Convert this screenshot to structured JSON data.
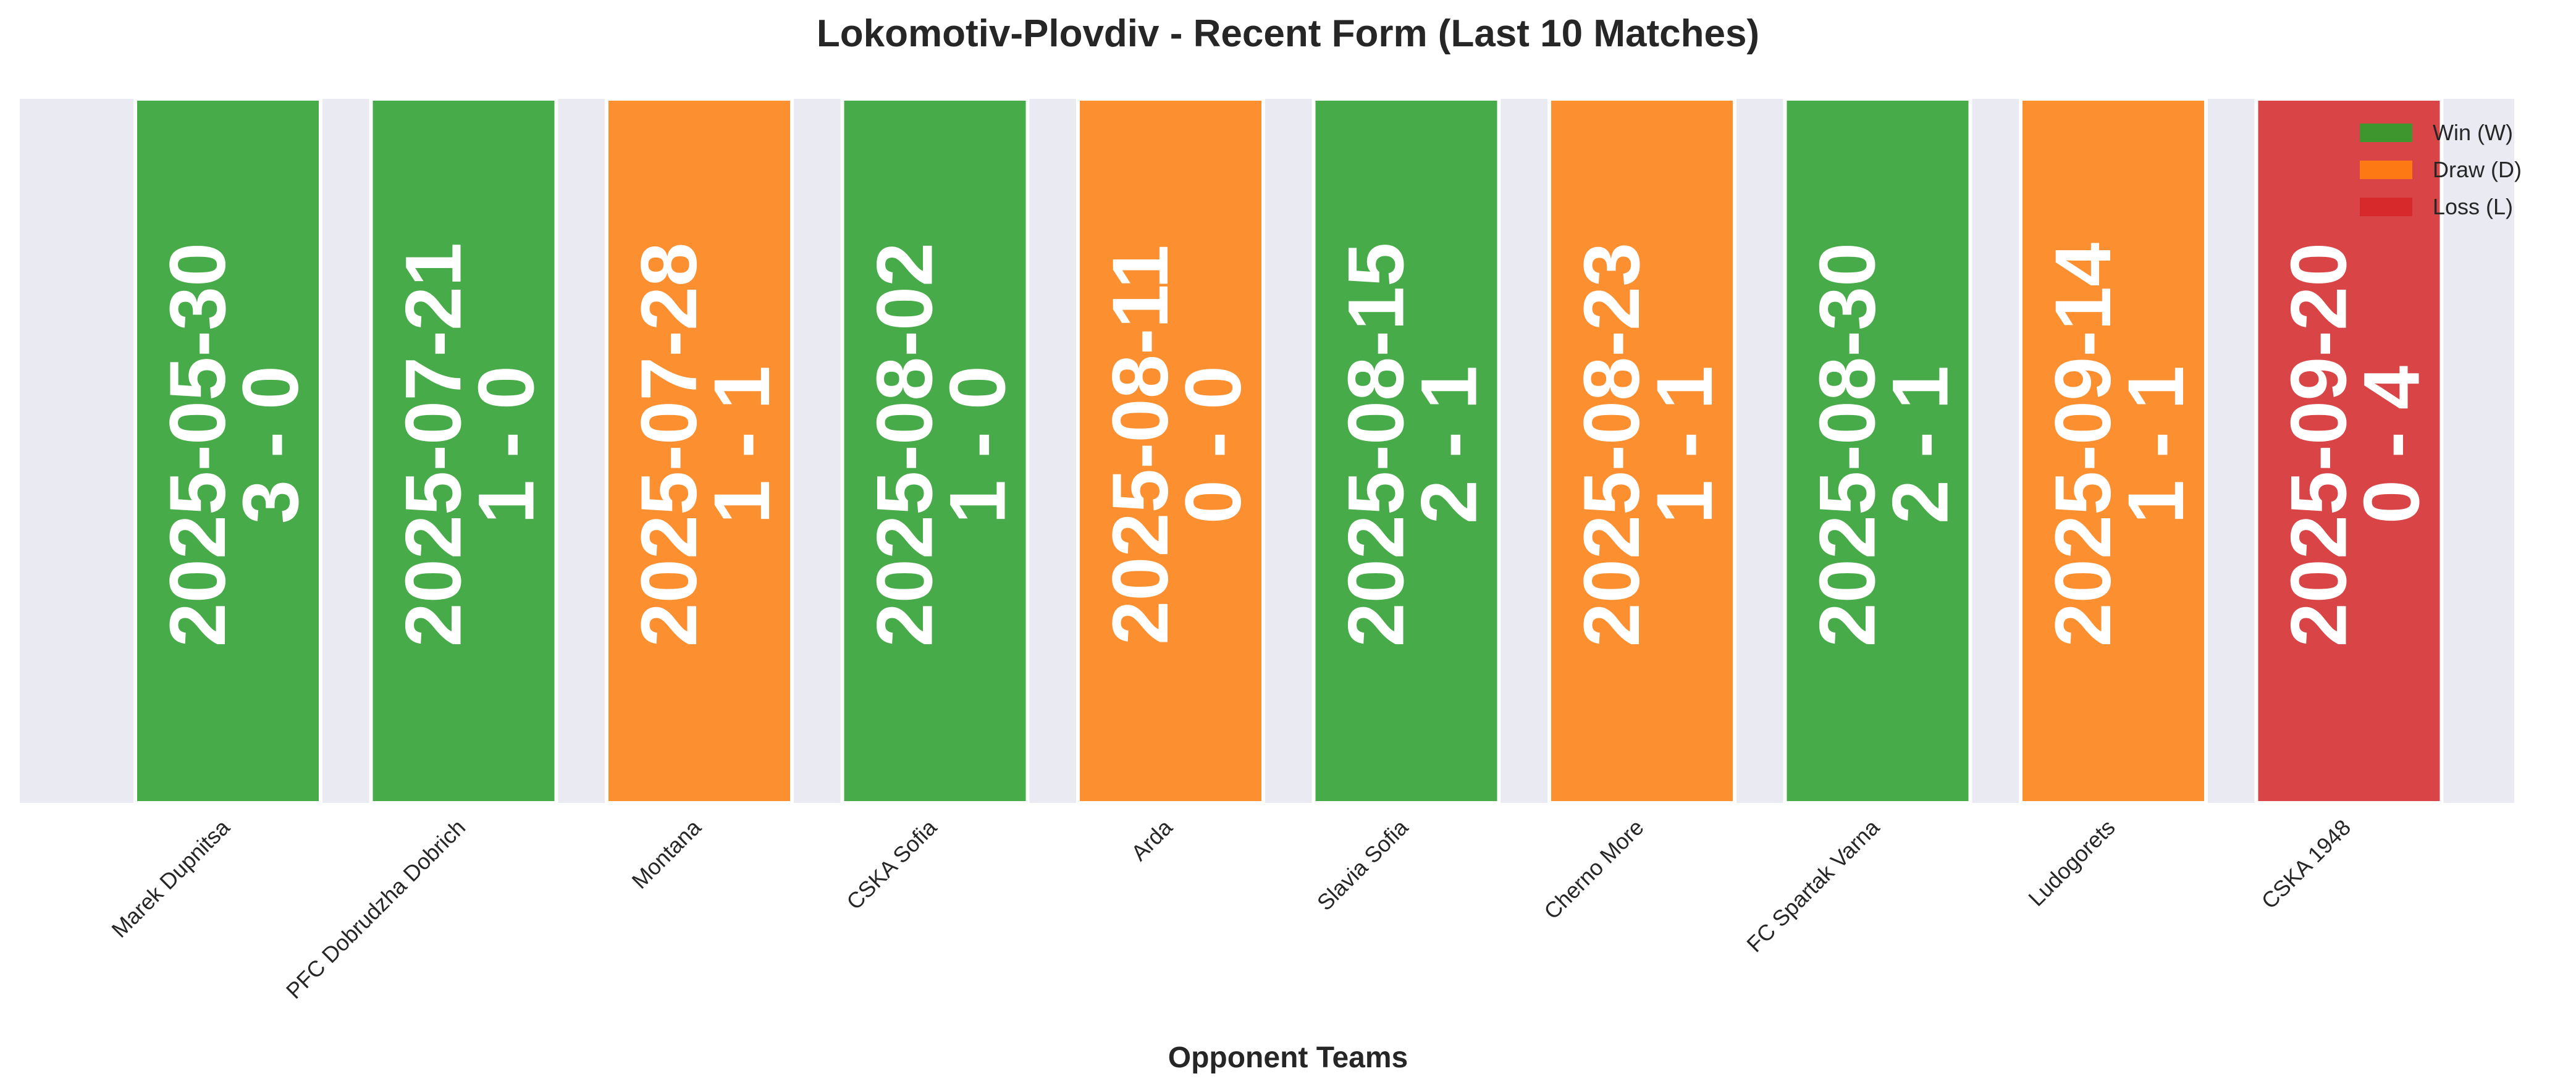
{
  "chart_data": {
    "type": "bar",
    "title": "Lokomotiv-Plovdiv - Recent Form (Last 10 Matches)",
    "xlabel": "Opponent Teams",
    "ylabel": "",
    "grid": false,
    "legend_position": "top-right",
    "colors": {
      "W": "#2ca02c",
      "D": "#ff7f0e",
      "L": "#d62728",
      "plot_background": "#eaeaf2"
    },
    "legend": [
      {
        "key": "W",
        "label": "Win (W)"
      },
      {
        "key": "D",
        "label": "Draw (D)"
      },
      {
        "key": "L",
        "label": "Loss (L)"
      }
    ],
    "categories": [
      "Marek Dupnitsa",
      "PFC Dobrudzha Dobrich",
      "Montana",
      "CSKA Sofia",
      "Arda",
      "Slavia Sofia",
      "Cherno More",
      "FC Spartak Varna",
      "Ludogorets",
      "CSKA 1948"
    ],
    "matches": [
      {
        "opponent": "Marek Dupnitsa",
        "date": "2025-05-30",
        "score": "3 - 0",
        "result": "W"
      },
      {
        "opponent": "PFC Dobrudzha Dobrich",
        "date": "2025-07-21",
        "score": "1 - 0",
        "result": "W"
      },
      {
        "opponent": "Montana",
        "date": "2025-07-28",
        "score": "1 - 1",
        "result": "D"
      },
      {
        "opponent": "CSKA Sofia",
        "date": "2025-08-02",
        "score": "1 - 0",
        "result": "W"
      },
      {
        "opponent": "Arda",
        "date": "2025-08-11",
        "score": "0 - 0",
        "result": "D"
      },
      {
        "opponent": "Slavia Sofia",
        "date": "2025-08-15",
        "score": "2 - 1",
        "result": "W"
      },
      {
        "opponent": "Cherno More",
        "date": "2025-08-23",
        "score": "1 - 1",
        "result": "D"
      },
      {
        "opponent": "FC Spartak Varna",
        "date": "2025-08-30",
        "score": "2 - 1",
        "result": "W"
      },
      {
        "opponent": "Ludogorets",
        "date": "2025-09-14",
        "score": "1 - 1",
        "result": "D"
      },
      {
        "opponent": "CSKA 1948",
        "date": "2025-09-20",
        "score": "0 - 4",
        "result": "L"
      }
    ]
  }
}
